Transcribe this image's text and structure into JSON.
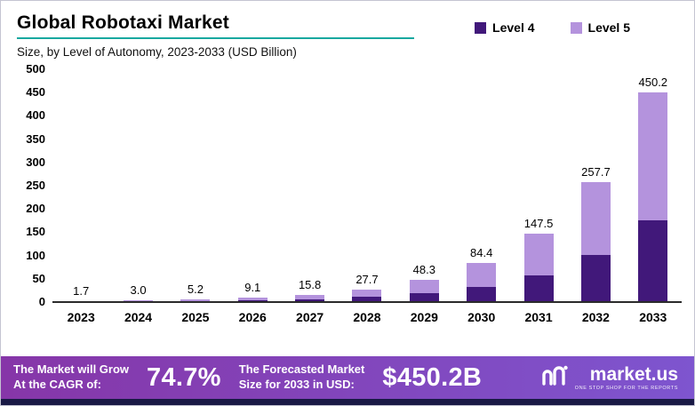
{
  "header": {
    "title": "Global Robotaxi Market",
    "subtitle": "Size, by Level of Autonomy, 2023-2033 (USD Billion)"
  },
  "legend": [
    {
      "label": "Level 4",
      "color": "#41187a"
    },
    {
      "label": "Level 5",
      "color": "#b493dd"
    }
  ],
  "chart_data": {
    "type": "bar",
    "stacked": true,
    "title": "Global Robotaxi Market",
    "subtitle": "Size, by Level of Autonomy, 2023-2033 (USD Billion)",
    "categories": [
      "2023",
      "2024",
      "2025",
      "2026",
      "2027",
      "2028",
      "2029",
      "2030",
      "2031",
      "2032",
      "2033"
    ],
    "series": [
      {
        "name": "Level 4",
        "color": "#41187a",
        "values": [
          0.7,
          1.2,
          2.1,
          3.6,
          6.2,
          11.0,
          19.0,
          33.0,
          57.5,
          100.5,
          176.0
        ]
      },
      {
        "name": "Level 5",
        "color": "#b493dd",
        "values": [
          1.0,
          1.8,
          3.1,
          5.5,
          9.6,
          16.7,
          29.3,
          51.4,
          90.0,
          157.2,
          274.2
        ]
      }
    ],
    "totals": [
      1.7,
      3.0,
      5.2,
      9.1,
      15.8,
      27.7,
      48.3,
      84.4,
      147.5,
      257.7,
      450.2
    ],
    "xlabel": "",
    "ylabel": "",
    "ylim": [
      0,
      500
    ],
    "yticks": [
      500,
      450,
      400,
      350,
      300,
      250,
      200,
      150,
      100,
      50,
      0
    ],
    "grid": false,
    "legend_position": "top-right"
  },
  "footer": {
    "cagr_label_line1": "The Market will Grow",
    "cagr_label_line2": "At the CAGR of:",
    "cagr_value": "74.7%",
    "forecast_label_line1": "The Forecasted Market",
    "forecast_label_line2": "Size for 2033 in USD:",
    "forecast_value": "$450.2B",
    "brand": "market.us",
    "brand_tagline": "One Stop Shop For The Reports"
  },
  "colors": {
    "level4": "#41187a",
    "level5": "#b493dd",
    "accent_teal": "#18a89f",
    "banner_gradient_start": "#8636a8",
    "banner_gradient_end": "#7e55cf",
    "bottom_strip": "#191945"
  }
}
